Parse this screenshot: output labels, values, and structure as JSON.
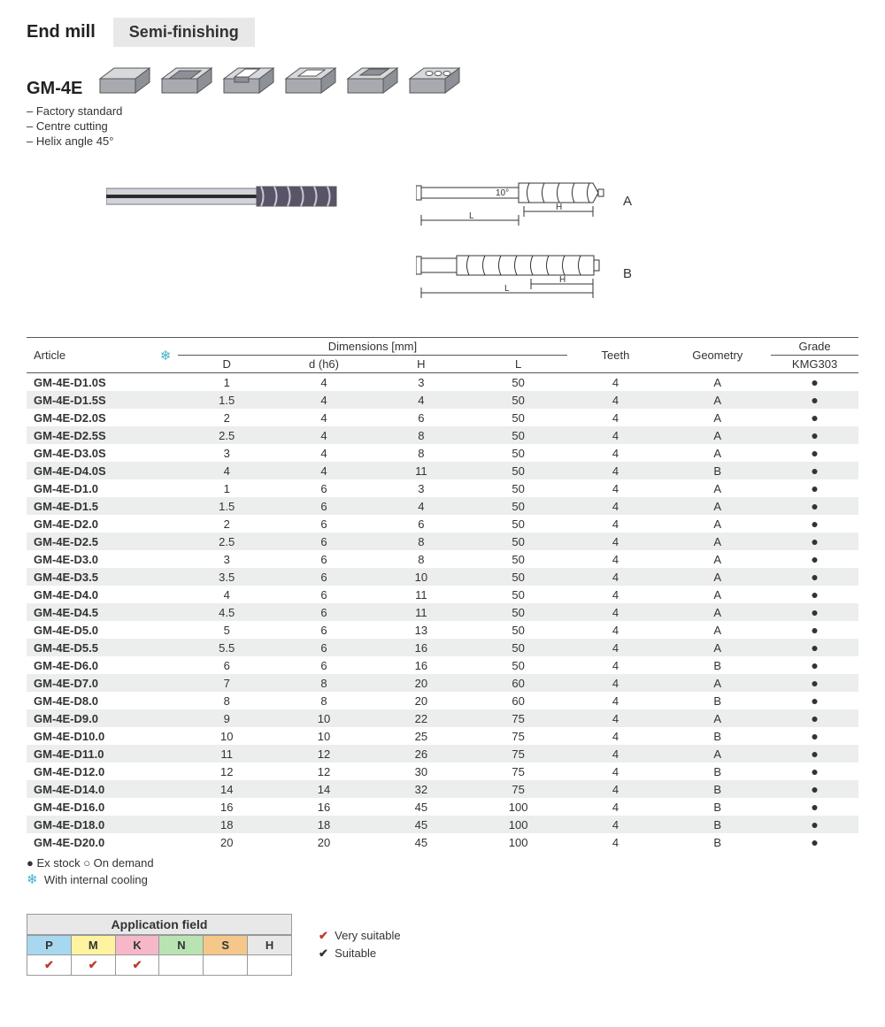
{
  "header": {
    "title": "End mill",
    "tab": "Semi-finishing",
    "product": "GM-4E",
    "bullets": [
      "– Factory standard",
      "– Centre cutting",
      "– Helix angle 45°"
    ]
  },
  "drawings": {
    "angle_label": "10°",
    "dim_H": "H",
    "dim_L": "L",
    "label_a": "A",
    "label_b": "B"
  },
  "table": {
    "headers": {
      "article": "Article",
      "dimensions": "Dimensions [mm]",
      "D": "D",
      "d": "d (h6)",
      "H": "H",
      "L": "L",
      "teeth": "Teeth",
      "geometry": "Geometry",
      "grade_group": "Grade",
      "grade": "KMG303"
    },
    "rows": [
      {
        "article": "GM-4E-D1.0S",
        "D": "1",
        "d": "4",
        "H": "3",
        "L": "50",
        "teeth": "4",
        "geo": "A",
        "g": "●"
      },
      {
        "article": "GM-4E-D1.5S",
        "D": "1.5",
        "d": "4",
        "H": "4",
        "L": "50",
        "teeth": "4",
        "geo": "A",
        "g": "●"
      },
      {
        "article": "GM-4E-D2.0S",
        "D": "2",
        "d": "4",
        "H": "6",
        "L": "50",
        "teeth": "4",
        "geo": "A",
        "g": "●"
      },
      {
        "article": "GM-4E-D2.5S",
        "D": "2.5",
        "d": "4",
        "H": "8",
        "L": "50",
        "teeth": "4",
        "geo": "A",
        "g": "●"
      },
      {
        "article": "GM-4E-D3.0S",
        "D": "3",
        "d": "4",
        "H": "8",
        "L": "50",
        "teeth": "4",
        "geo": "A",
        "g": "●"
      },
      {
        "article": "GM-4E-D4.0S",
        "D": "4",
        "d": "4",
        "H": "11",
        "L": "50",
        "teeth": "4",
        "geo": "B",
        "g": "●"
      },
      {
        "article": "GM-4E-D1.0",
        "D": "1",
        "d": "6",
        "H": "3",
        "L": "50",
        "teeth": "4",
        "geo": "A",
        "g": "●"
      },
      {
        "article": "GM-4E-D1.5",
        "D": "1.5",
        "d": "6",
        "H": "4",
        "L": "50",
        "teeth": "4",
        "geo": "A",
        "g": "●"
      },
      {
        "article": "GM-4E-D2.0",
        "D": "2",
        "d": "6",
        "H": "6",
        "L": "50",
        "teeth": "4",
        "geo": "A",
        "g": "●"
      },
      {
        "article": "GM-4E-D2.5",
        "D": "2.5",
        "d": "6",
        "H": "8",
        "L": "50",
        "teeth": "4",
        "geo": "A",
        "g": "●"
      },
      {
        "article": "GM-4E-D3.0",
        "D": "3",
        "d": "6",
        "H": "8",
        "L": "50",
        "teeth": "4",
        "geo": "A",
        "g": "●"
      },
      {
        "article": "GM-4E-D3.5",
        "D": "3.5",
        "d": "6",
        "H": "10",
        "L": "50",
        "teeth": "4",
        "geo": "A",
        "g": "●"
      },
      {
        "article": "GM-4E-D4.0",
        "D": "4",
        "d": "6",
        "H": "11",
        "L": "50",
        "teeth": "4",
        "geo": "A",
        "g": "●"
      },
      {
        "article": "GM-4E-D4.5",
        "D": "4.5",
        "d": "6",
        "H": "11",
        "L": "50",
        "teeth": "4",
        "geo": "A",
        "g": "●"
      },
      {
        "article": "GM-4E-D5.0",
        "D": "5",
        "d": "6",
        "H": "13",
        "L": "50",
        "teeth": "4",
        "geo": "A",
        "g": "●"
      },
      {
        "article": "GM-4E-D5.5",
        "D": "5.5",
        "d": "6",
        "H": "16",
        "L": "50",
        "teeth": "4",
        "geo": "A",
        "g": "●"
      },
      {
        "article": "GM-4E-D6.0",
        "D": "6",
        "d": "6",
        "H": "16",
        "L": "50",
        "teeth": "4",
        "geo": "B",
        "g": "●"
      },
      {
        "article": "GM-4E-D7.0",
        "D": "7",
        "d": "8",
        "H": "20",
        "L": "60",
        "teeth": "4",
        "geo": "A",
        "g": "●"
      },
      {
        "article": "GM-4E-D8.0",
        "D": "8",
        "d": "8",
        "H": "20",
        "L": "60",
        "teeth": "4",
        "geo": "B",
        "g": "●"
      },
      {
        "article": "GM-4E-D9.0",
        "D": "9",
        "d": "10",
        "H": "22",
        "L": "75",
        "teeth": "4",
        "geo": "A",
        "g": "●"
      },
      {
        "article": "GM-4E-D10.0",
        "D": "10",
        "d": "10",
        "H": "25",
        "L": "75",
        "teeth": "4",
        "geo": "B",
        "g": "●"
      },
      {
        "article": "GM-4E-D11.0",
        "D": "11",
        "d": "12",
        "H": "26",
        "L": "75",
        "teeth": "4",
        "geo": "A",
        "g": "●"
      },
      {
        "article": "GM-4E-D12.0",
        "D": "12",
        "d": "12",
        "H": "30",
        "L": "75",
        "teeth": "4",
        "geo": "B",
        "g": "●"
      },
      {
        "article": "GM-4E-D14.0",
        "D": "14",
        "d": "14",
        "H": "32",
        "L": "75",
        "teeth": "4",
        "geo": "B",
        "g": "●"
      },
      {
        "article": "GM-4E-D16.0",
        "D": "16",
        "d": "16",
        "H": "45",
        "L": "100",
        "teeth": "4",
        "geo": "B",
        "g": "●"
      },
      {
        "article": "GM-4E-D18.0",
        "D": "18",
        "d": "18",
        "H": "45",
        "L": "100",
        "teeth": "4",
        "geo": "B",
        "g": "●"
      },
      {
        "article": "GM-4E-D20.0",
        "D": "20",
        "d": "20",
        "H": "45",
        "L": "100",
        "teeth": "4",
        "geo": "B",
        "g": "●"
      }
    ]
  },
  "legend": {
    "stock": "●  Ex stock    ○  On demand",
    "cooling": "❄  With internal cooling"
  },
  "appfield": {
    "title": "Application field",
    "cols": [
      {
        "label": "P",
        "bg": "#a7d8f0",
        "check": "red"
      },
      {
        "label": "M",
        "bg": "#fff3a0",
        "check": "red"
      },
      {
        "label": "K",
        "bg": "#f6b8c9",
        "check": "red"
      },
      {
        "label": "N",
        "bg": "#b9e3b3",
        "check": ""
      },
      {
        "label": "S",
        "bg": "#f5c78a",
        "check": ""
      },
      {
        "label": "H",
        "bg": "#e8e8e8",
        "check": ""
      }
    ],
    "very": "Very suitable",
    "suit": "Suitable"
  }
}
